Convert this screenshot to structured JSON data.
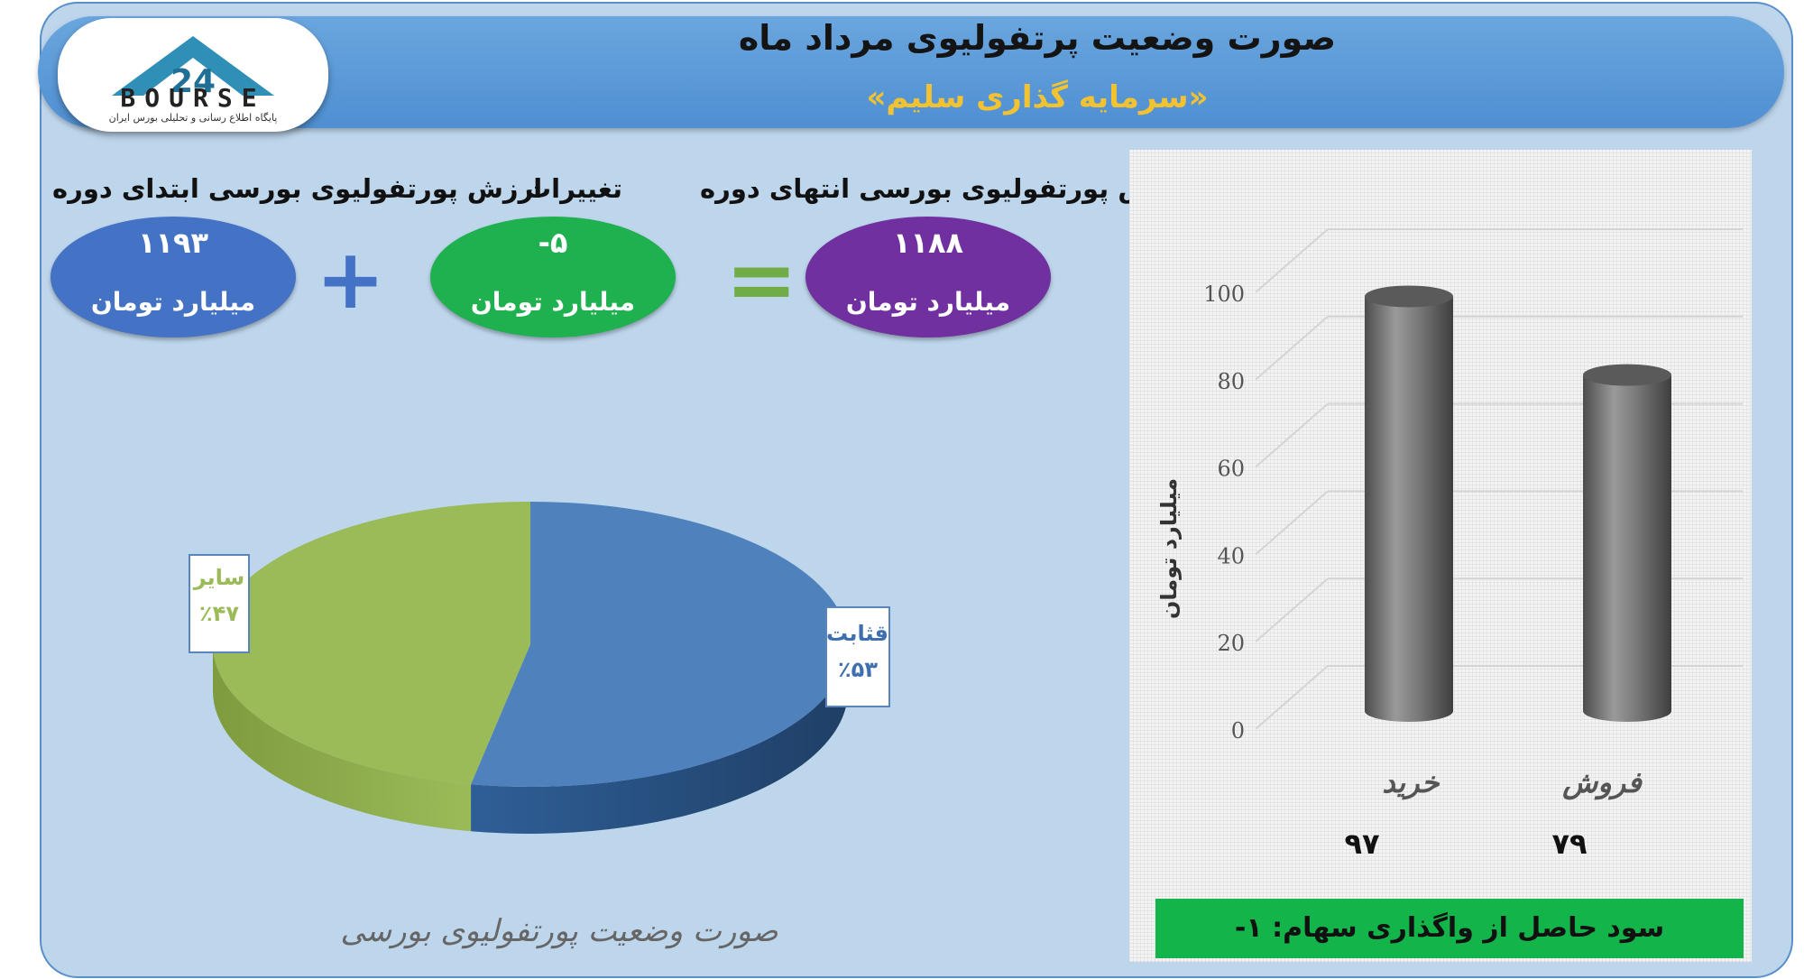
{
  "header": {
    "title": "صورت وضعیت پرتفولیوی مرداد ماه",
    "subtitle": "«سرمایه گذاری سلیم»",
    "logo_text": "BOURSE",
    "logo_tagline": "پایگاه اطلاع رسانی و تحلیلی بورس ایران"
  },
  "summary": {
    "start": {
      "label": "ارزش پورتفولیوی بورسی ابتدای دوره",
      "value": "۱۱۹۳",
      "unit": "میلیارد تومان",
      "color": "#4472c4"
    },
    "change": {
      "label": "تغییرات",
      "value": "-۵",
      "unit": "میلیارد تومان",
      "color": "#1fb050"
    },
    "end": {
      "label": "ارزش پورتفولیوی بورسی انتهای دوره",
      "value": "۱۱۸۸",
      "unit": "میلیارد تومان",
      "color": "#7030a0"
    },
    "plus_sign": "+",
    "equals_sign": "="
  },
  "colors": {
    "plus": "#4472c4",
    "equals": "#70ad47",
    "pie_blue": "#4f81bd",
    "pie_green": "#9bbb59",
    "sale_bar": "#13b54b"
  },
  "chart_data": [
    {
      "type": "pie",
      "title": "صورت وضعیت پورتفولیوی بورسی",
      "slices": [
        {
          "name": "قثابت",
          "value": 53,
          "label": "٪۵۳",
          "color": "#4f81bd"
        },
        {
          "name": "سایر",
          "value": 47,
          "label": "٪۴۷",
          "color": "#9bbb59"
        }
      ]
    },
    {
      "type": "bar",
      "categories": [
        "خرید",
        "فروش"
      ],
      "values": [
        97,
        79
      ],
      "value_labels": [
        "۹۷",
        "۷۹"
      ],
      "ylabel": "میلیارد تومان",
      "ylim": [
        0,
        100
      ],
      "yticks": [
        0,
        20,
        40,
        60,
        80,
        100
      ],
      "grid": true
    }
  ],
  "sale_profit": {
    "text": "سود حاصل از واگذاری سهام: ۱-"
  }
}
